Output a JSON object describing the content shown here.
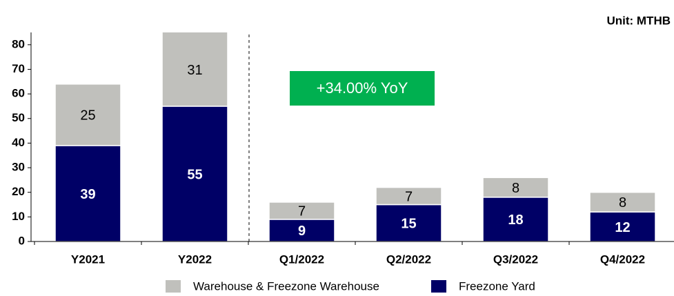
{
  "chart_data": {
    "type": "stacked_bar",
    "unit_label": "Unit: MTHB",
    "annotation": "+34.00% YoY",
    "categories": [
      "Y2021",
      "Y2022",
      "Q1/2022",
      "Q2/2022",
      "Q3/2022",
      "Q4/2022"
    ],
    "series": [
      {
        "name": "Freezone Yard",
        "color": "#000066",
        "values": [
          39,
          55,
          9,
          15,
          18,
          12
        ]
      },
      {
        "name": "Warehouse & Freezone Warehouse",
        "color": "#c0c0bc",
        "values": [
          25,
          31,
          7,
          7,
          8,
          8
        ]
      }
    ],
    "ylim": [
      0,
      85
    ],
    "yticks": [
      0,
      10,
      20,
      30,
      40,
      50,
      60,
      70,
      80
    ],
    "grid": false,
    "legend": "bottom"
  }
}
